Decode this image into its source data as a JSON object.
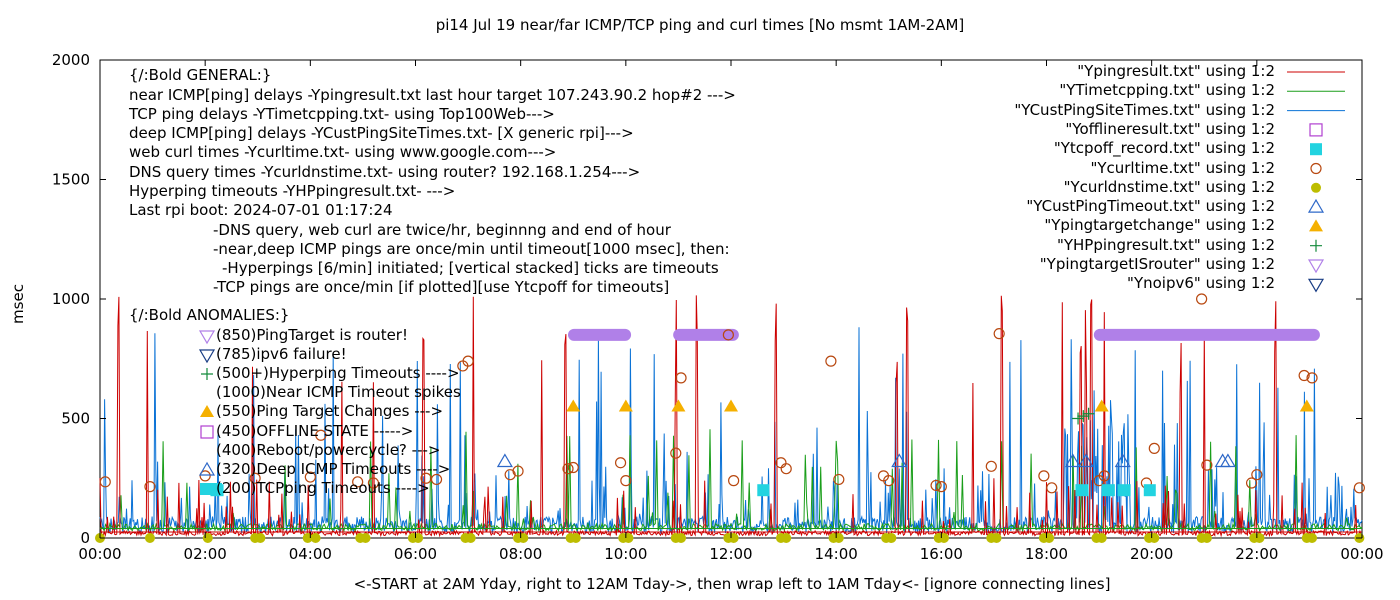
{
  "chart_data": {
    "type": "line",
    "title": "pi14 Jul 19  near/far ICMP/TCP ping and curl times [No msmt 1AM-2AM]",
    "xlabel": "<-START at 2AM Yday, right to 12AM Tday->, then wrap left to 1AM Tday<- [ignore connecting lines]",
    "ylabel": "msec",
    "xlim": [
      0,
      24
    ],
    "ylim": [
      0,
      2000
    ],
    "x_ticks": [
      "00:00",
      "02:00",
      "04:00",
      "06:00",
      "08:00",
      "10:00",
      "12:00",
      "14:00",
      "16:00",
      "18:00",
      "20:00",
      "22:00",
      "00:00"
    ],
    "y_ticks": [
      "0",
      "500",
      "1000",
      "1500",
      "2000"
    ],
    "legend_position": "top-right",
    "legend": [
      {
        "label": "\"Ypingresult.txt\" using 1:2",
        "style": "line",
        "color": "#cc0000"
      },
      {
        "label": "\"YTimetcpping.txt\" using 1:2",
        "style": "line",
        "color": "#1a9e1a"
      },
      {
        "label": "\"YCustPingSiteTimes.txt\" using 1:2",
        "style": "line",
        "color": "#0a72d6"
      },
      {
        "label": "\"Yofflineresult.txt\" using 1:2",
        "style": "open-square",
        "color": "#b040d0"
      },
      {
        "label": "\"Ytcpoff_record.txt\" using 1:2",
        "style": "filled-square",
        "color": "#22d3e0"
      },
      {
        "label": "\"Ycurltime.txt\" using 1:2",
        "style": "open-circle",
        "color": "#b84810"
      },
      {
        "label": "\"Ycurldnstime.txt\" using 1:2",
        "style": "filled-circle",
        "color": "#bdbd00"
      },
      {
        "label": "\"YCustPingTimeout.txt\" using 1:2",
        "style": "open-triangle",
        "color": "#2e68c8"
      },
      {
        "label": "\"Ypingtargetchange\" using 1:2",
        "style": "filled-triangle",
        "color": "#f5b000"
      },
      {
        "label": "\"YHPpingresult.txt\" using 1:2",
        "style": "plus",
        "color": "#128a3a"
      },
      {
        "label": "\"YpingtargetISrouter\" using 1:2",
        "style": "open-down-triangle",
        "color": "#b080e8"
      },
      {
        "label": "\"Ynoipv6\" using 1:2",
        "style": "open-down-triangle",
        "color": "#183c84"
      }
    ],
    "annotations": [
      "{/:Bold GENERAL:}",
      "near ICMP[ping] delays -Ypingresult.txt last hour target 107.243.90.2 hop#2 --->",
      "TCP ping delays -YTimetcpping.txt- using Top100Web--->",
      "deep ICMP[ping] delays -YCustPingSiteTimes.txt- [X generic rpi]--->",
      "web curl times -Ycurltime.txt- using www.google.com--->",
      "DNS query times -Ycurldnstime.txt- using router? 192.168.1.254--->",
      "Hyperping timeouts -YHPpingresult.txt- --->",
      "Last rpi boot: 2024-07-01 01:17:24",
      "-DNS query, web curl are twice/hr, beginnng and end of hour",
      "-near,deep ICMP pings are once/min until timeout[1000 msec], then:",
      "-Hyperpings [6/min] initiated; [vertical stacked] ticks are timeouts",
      "-TCP pings are once/min [if plotted][use Ytcpoff for timeouts]",
      "{/:Bold ANOMALIES:}",
      "(850)PingTarget is router!",
      "(785)ipv6 failure!",
      "(500+)Hyperping Timeouts ---->",
      "(1000)Near ICMP Timeout spikes",
      "(550)Ping Target Changes --->",
      "(450)OFFLINE STATE ----->",
      "(400)Reboot/powercycle? --->",
      "(320)Deep ICMP Timeouts ---->",
      "(200)TCPping Timeouts ---->"
    ],
    "series": {
      "curl_times": [
        [
          0.1,
          235
        ],
        [
          0.95,
          215
        ],
        [
          2.0,
          260
        ],
        [
          2.95,
          250
        ],
        [
          4.2,
          430
        ],
        [
          4.0,
          255
        ],
        [
          4.9,
          235
        ],
        [
          5.2,
          230
        ],
        [
          6.2,
          250
        ],
        [
          6.4,
          245
        ],
        [
          6.9,
          720
        ],
        [
          7.0,
          740
        ],
        [
          7.8,
          265
        ],
        [
          7.95,
          280
        ],
        [
          8.9,
          290
        ],
        [
          9.0,
          295
        ],
        [
          9.9,
          315
        ],
        [
          10.0,
          240
        ],
        [
          10.95,
          355
        ],
        [
          11.05,
          670
        ],
        [
          11.95,
          850
        ],
        [
          12.05,
          240
        ],
        [
          12.95,
          315
        ],
        [
          13.05,
          290
        ],
        [
          13.9,
          740
        ],
        [
          14.05,
          245
        ],
        [
          14.9,
          260
        ],
        [
          15.0,
          240
        ],
        [
          15.9,
          220
        ],
        [
          16.0,
          215
        ],
        [
          16.95,
          300
        ],
        [
          17.1,
          855
        ],
        [
          17.95,
          260
        ],
        [
          18.1,
          210
        ],
        [
          19.0,
          240
        ],
        [
          19.1,
          260
        ],
        [
          19.9,
          230
        ],
        [
          20.05,
          375
        ],
        [
          20.95,
          1000
        ],
        [
          21.05,
          305
        ],
        [
          21.9,
          230
        ],
        [
          22.0,
          265
        ],
        [
          22.9,
          680
        ],
        [
          23.05,
          670
        ],
        [
          23.95,
          210
        ]
      ],
      "dns_times": [
        0.0,
        0.95,
        2.05,
        2.95,
        3.05,
        3.95,
        4.1,
        4.95,
        5.05,
        5.95,
        6.05,
        6.95,
        7.05,
        7.95,
        8.05,
        8.95,
        9.05,
        9.95,
        10.05,
        10.95,
        11.05,
        11.95,
        12.05,
        12.95,
        13.05,
        13.95,
        14.05,
        14.95,
        15.05,
        15.95,
        16.05,
        16.95,
        17.05,
        17.95,
        18.05,
        18.95,
        19.05,
        19.95,
        20.05,
        20.95,
        21.05,
        21.95,
        22.05,
        22.95,
        23.05,
        23.95
      ],
      "custping_timeouts": [
        [
          7.7,
          320
        ],
        [
          15.2,
          320
        ],
        [
          18.5,
          320
        ],
        [
          18.75,
          320
        ],
        [
          19.45,
          320
        ],
        [
          21.35,
          320
        ],
        [
          21.45,
          320
        ]
      ],
      "ping_target_changes": [
        9.0,
        10.0,
        11.0,
        12.0,
        19.05,
        22.95
      ],
      "tcp_timeouts": [
        [
          2.1,
          2.35
        ],
        [
          12.5,
          12.6
        ],
        [
          18.55,
          18.8
        ],
        [
          19.05,
          19.3
        ],
        [
          19.35,
          19.6
        ],
        [
          19.85,
          20.0
        ]
      ],
      "router_target_bars": [
        [
          8.9,
          10.1
        ],
        [
          10.9,
          12.15
        ],
        [
          18.9,
          23.2
        ]
      ],
      "hyperping_clusters": [
        [
          18.6,
          500
        ],
        [
          18.7,
          510
        ],
        [
          18.8,
          520
        ]
      ],
      "near_icmp_spikes": [
        0.35,
        0.9,
        2.9,
        4.6,
        5.2,
        6.15,
        7.1,
        8.4,
        8.85,
        10.95,
        11.35,
        12.85,
        15.15,
        15.35,
        16.6,
        17.15,
        18.3,
        18.65,
        18.75,
        18.85,
        19.1,
        20.55,
        21.0,
        22.35
      ]
    }
  }
}
